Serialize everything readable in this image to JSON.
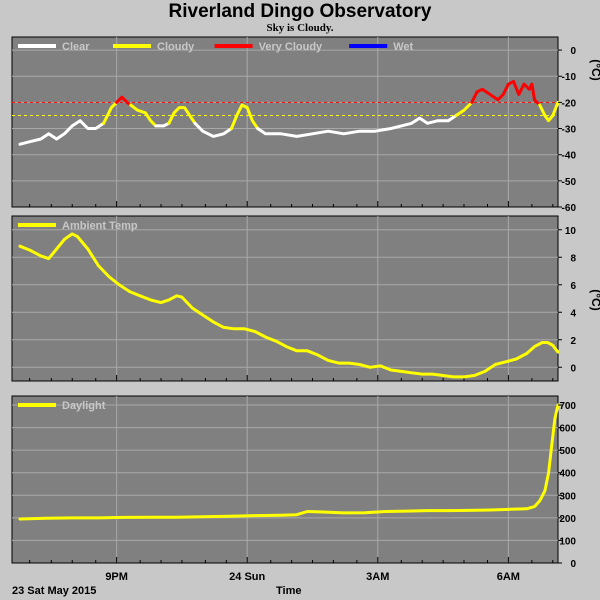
{
  "title": "Riverland Dingo Observatory",
  "subtitle": "Sky is Cloudy.",
  "date_label": "23 Sat May 2015",
  "x_axis_title": "Time",
  "chart_data": [
    {
      "type": "line",
      "name": "sky-panel",
      "unit": "(°C)",
      "ylim": [
        -60,
        5
      ],
      "yticks": [
        0,
        -10,
        -20,
        -30,
        -40,
        -50,
        -60
      ],
      "xlim": [
        0,
        10.3
      ],
      "reference_lines": [
        {
          "value": -20,
          "color": "#ff0000"
        },
        {
          "value": -25,
          "color": "#ffff00"
        }
      ],
      "legend": [
        {
          "label": "Clear",
          "color": "#ffffff"
        },
        {
          "label": "Cloudy",
          "color": "#ffff00"
        },
        {
          "label": "Very Cloudy",
          "color": "#ff0000"
        },
        {
          "label": "Wet",
          "color": "#0000ff"
        }
      ],
      "series": [
        {
          "color": "#ffffff",
          "points": [
            [
              0,
              -36
            ],
            [
              0.2,
              -35
            ],
            [
              0.4,
              -34
            ],
            [
              0.55,
              -32
            ],
            [
              0.7,
              -34
            ],
            [
              0.85,
              -32
            ],
            [
              1.0,
              -29
            ],
            [
              1.15,
              -27
            ],
            [
              1.3,
              -30
            ],
            [
              1.45,
              -30
            ],
            [
              1.6,
              -28
            ]
          ]
        },
        {
          "color": "#ffff00",
          "points": [
            [
              1.6,
              -28
            ],
            [
              1.75,
              -22
            ],
            [
              1.85,
              -20
            ]
          ]
        },
        {
          "color": "#ff0000",
          "points": [
            [
              1.85,
              -20
            ],
            [
              1.95,
              -18
            ],
            [
              2.05,
              -20
            ],
            [
              2.12,
              -21
            ]
          ]
        },
        {
          "color": "#ffff00",
          "points": [
            [
              2.12,
              -21
            ],
            [
              2.25,
              -23
            ],
            [
              2.4,
              -24
            ],
            [
              2.5,
              -27
            ],
            [
              2.6,
              -29
            ]
          ]
        },
        {
          "color": "#ffffff",
          "points": [
            [
              2.6,
              -29
            ],
            [
              2.75,
              -29
            ],
            [
              2.85,
              -28
            ]
          ]
        },
        {
          "color": "#ffff00",
          "points": [
            [
              2.85,
              -28
            ],
            [
              2.95,
              -24
            ],
            [
              3.05,
              -22
            ],
            [
              3.15,
              -22
            ],
            [
              3.25,
              -25
            ],
            [
              3.35,
              -28
            ]
          ]
        },
        {
          "color": "#ffffff",
          "points": [
            [
              3.35,
              -28
            ],
            [
              3.5,
              -31
            ],
            [
              3.7,
              -33
            ],
            [
              3.9,
              -32
            ],
            [
              4.05,
              -30
            ]
          ]
        },
        {
          "color": "#ffff00",
          "points": [
            [
              4.05,
              -30
            ],
            [
              4.15,
              -25
            ],
            [
              4.25,
              -21
            ],
            [
              4.35,
              -22
            ],
            [
              4.45,
              -27
            ],
            [
              4.55,
              -30
            ]
          ]
        },
        {
          "color": "#ffffff",
          "points": [
            [
              4.55,
              -30
            ],
            [
              4.7,
              -32
            ],
            [
              5.0,
              -32
            ],
            [
              5.3,
              -33
            ],
            [
              5.6,
              -32
            ],
            [
              5.9,
              -31
            ],
            [
              6.2,
              -32
            ],
            [
              6.5,
              -31
            ],
            [
              6.8,
              -31
            ],
            [
              7.1,
              -30
            ],
            [
              7.3,
              -29
            ],
            [
              7.5,
              -28
            ],
            [
              7.65,
              -26
            ],
            [
              7.8,
              -28
            ],
            [
              8.0,
              -27
            ],
            [
              8.2,
              -27
            ],
            [
              8.35,
              -25
            ]
          ]
        },
        {
          "color": "#ffff00",
          "points": [
            [
              8.35,
              -25
            ],
            [
              8.5,
              -23
            ],
            [
              8.6,
              -21
            ],
            [
              8.65,
              -20
            ]
          ]
        },
        {
          "color": "#ff0000",
          "points": [
            [
              8.65,
              -20
            ],
            [
              8.75,
              -16
            ],
            [
              8.85,
              -15
            ],
            [
              9.0,
              -17
            ],
            [
              9.15,
              -19
            ],
            [
              9.25,
              -17
            ],
            [
              9.35,
              -13
            ],
            [
              9.45,
              -12
            ],
            [
              9.55,
              -17
            ],
            [
              9.65,
              -13
            ],
            [
              9.75,
              -15
            ],
            [
              9.8,
              -13
            ],
            [
              9.85,
              -19
            ],
            [
              9.95,
              -21
            ]
          ]
        },
        {
          "color": "#ffff00",
          "points": [
            [
              9.95,
              -21
            ],
            [
              10.05,
              -25
            ],
            [
              10.12,
              -27
            ],
            [
              10.2,
              -25
            ],
            [
              10.3,
              -20
            ]
          ]
        }
      ]
    },
    {
      "type": "line",
      "name": "ambient-panel",
      "unit": "(°C)",
      "ylim": [
        -1,
        11
      ],
      "yticks": [
        10,
        8,
        6,
        4,
        2,
        0
      ],
      "xlim": [
        0,
        10.3
      ],
      "legend": [
        {
          "label": "Ambient Temp",
          "color": "#ffff00"
        }
      ],
      "series": [
        {
          "color": "#ffff00",
          "points": [
            [
              0,
              8.8
            ],
            [
              0.2,
              8.5
            ],
            [
              0.4,
              8.1
            ],
            [
              0.55,
              7.9
            ],
            [
              0.7,
              8.6
            ],
            [
              0.85,
              9.3
            ],
            [
              1.0,
              9.7
            ],
            [
              1.1,
              9.5
            ],
            [
              1.3,
              8.6
            ],
            [
              1.5,
              7.4
            ],
            [
              1.7,
              6.6
            ],
            [
              1.9,
              6.0
            ],
            [
              2.1,
              5.5
            ],
            [
              2.3,
              5.2
            ],
            [
              2.5,
              4.9
            ],
            [
              2.7,
              4.7
            ],
            [
              2.85,
              4.9
            ],
            [
              3.0,
              5.2
            ],
            [
              3.1,
              5.1
            ],
            [
              3.3,
              4.3
            ],
            [
              3.5,
              3.8
            ],
            [
              3.7,
              3.3
            ],
            [
              3.9,
              2.9
            ],
            [
              4.1,
              2.8
            ],
            [
              4.3,
              2.8
            ],
            [
              4.5,
              2.6
            ],
            [
              4.7,
              2.2
            ],
            [
              4.9,
              1.9
            ],
            [
              5.1,
              1.5
            ],
            [
              5.3,
              1.2
            ],
            [
              5.5,
              1.2
            ],
            [
              5.7,
              0.9
            ],
            [
              5.9,
              0.5
            ],
            [
              6.1,
              0.3
            ],
            [
              6.3,
              0.3
            ],
            [
              6.5,
              0.2
            ],
            [
              6.7,
              0.0
            ],
            [
              6.9,
              0.1
            ],
            [
              7.1,
              -0.2
            ],
            [
              7.3,
              -0.3
            ],
            [
              7.5,
              -0.4
            ],
            [
              7.7,
              -0.5
            ],
            [
              7.9,
              -0.5
            ],
            [
              8.1,
              -0.6
            ],
            [
              8.3,
              -0.7
            ],
            [
              8.5,
              -0.7
            ],
            [
              8.7,
              -0.6
            ],
            [
              8.9,
              -0.3
            ],
            [
              9.1,
              0.2
            ],
            [
              9.3,
              0.4
            ],
            [
              9.5,
              0.6
            ],
            [
              9.7,
              1.0
            ],
            [
              9.85,
              1.5
            ],
            [
              10.0,
              1.8
            ],
            [
              10.1,
              1.8
            ],
            [
              10.2,
              1.6
            ],
            [
              10.3,
              1.1
            ]
          ]
        }
      ]
    },
    {
      "type": "line",
      "name": "daylight-panel",
      "ylim": [
        0,
        740
      ],
      "yticks": [
        700,
        600,
        500,
        400,
        300,
        200,
        100,
        0
      ],
      "xlim": [
        0,
        10.3
      ],
      "legend": [
        {
          "label": "Daylight",
          "color": "#ffff00"
        }
      ],
      "series": [
        {
          "color": "#ffff00",
          "points": [
            [
              0,
              195
            ],
            [
              0.5,
              198
            ],
            [
              1.0,
              200
            ],
            [
              1.5,
              200
            ],
            [
              2.0,
              202
            ],
            [
              2.5,
              203
            ],
            [
              3.0,
              203
            ],
            [
              3.5,
              205
            ],
            [
              4.0,
              207
            ],
            [
              4.5,
              210
            ],
            [
              5.0,
              212
            ],
            [
              5.3,
              214
            ],
            [
              5.5,
              228
            ],
            [
              5.8,
              226
            ],
            [
              6.2,
              222
            ],
            [
              6.6,
              223
            ],
            [
              7.0,
              228
            ],
            [
              7.4,
              230
            ],
            [
              7.8,
              232
            ],
            [
              8.2,
              232
            ],
            [
              8.6,
              233
            ],
            [
              9.0,
              235
            ],
            [
              9.4,
              238
            ],
            [
              9.7,
              240
            ],
            [
              9.85,
              250
            ],
            [
              9.95,
              275
            ],
            [
              10.05,
              320
            ],
            [
              10.12,
              400
            ],
            [
              10.18,
              520
            ],
            [
              10.24,
              640
            ],
            [
              10.3,
              700
            ]
          ]
        }
      ]
    }
  ],
  "x_ticks": [
    {
      "x": 1.85,
      "label": "9PM"
    },
    {
      "x": 4.35,
      "label": "24 Sun"
    },
    {
      "x": 6.85,
      "label": "3AM"
    },
    {
      "x": 9.35,
      "label": "6AM"
    }
  ],
  "x_minor_ticks": [
    0.185,
    0.6,
    1.0,
    1.45,
    2.3,
    2.7,
    3.1,
    3.55,
    3.95,
    4.8,
    5.2,
    5.6,
    6.0,
    6.45,
    7.3,
    7.7,
    8.1,
    8.5,
    8.95,
    9.8,
    10.2
  ]
}
